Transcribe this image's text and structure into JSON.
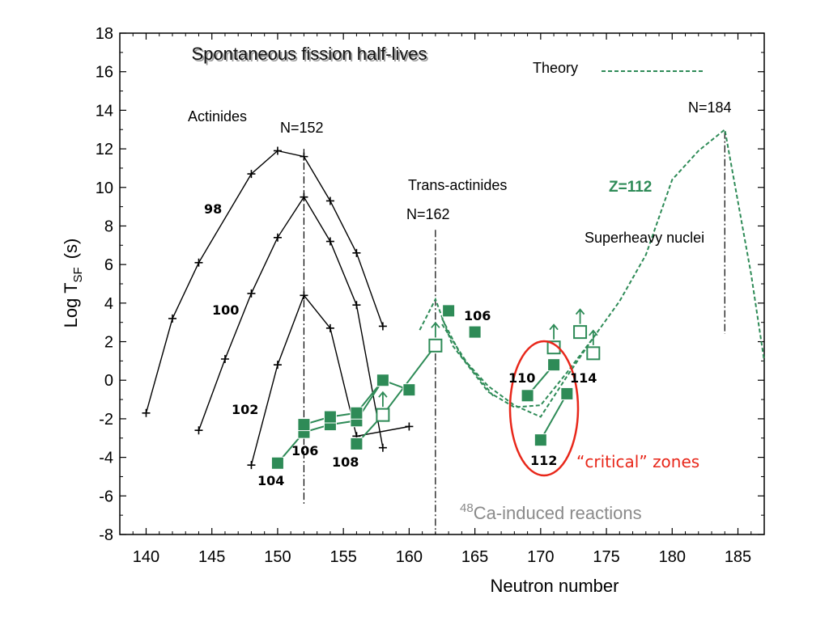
{
  "chart_data": {
    "type": "line",
    "title": "Spontaneous fission half-lives",
    "xlabel": "Neutron number",
    "ylabel_main": "Log T",
    "ylabel_sub": "SF",
    "ylabel_unit": "(s)",
    "xlim": [
      138,
      187
    ],
    "ylim": [
      -8,
      18
    ],
    "x_ticks": [
      140,
      145,
      150,
      155,
      160,
      165,
      170,
      175,
      180,
      185
    ],
    "y_ticks": [
      -8,
      -6,
      -4,
      -2,
      0,
      2,
      4,
      6,
      8,
      10,
      12,
      14,
      16,
      18
    ],
    "x_tick_labels": [
      "140",
      "145",
      "150",
      "155",
      "160",
      "165",
      "170",
      "175",
      "180",
      "185"
    ],
    "y_tick_labels": [
      "-8",
      "-6",
      "-4",
      "-2",
      "0",
      "2",
      "4",
      "6",
      "8",
      "10",
      "12",
      "14",
      "16",
      "18"
    ],
    "colors": {
      "actinide": "#000000",
      "sh": "#2e8b57",
      "ring": "#e8271a",
      "reactions": "#8a8a8a"
    },
    "actinide_series": [
      {
        "name": "98",
        "x": [
          140,
          142,
          144,
          148,
          150,
          152,
          154,
          156,
          158
        ],
        "y": [
          -1.7,
          3.2,
          6.1,
          10.7,
          11.9,
          11.6,
          9.3,
          6.6,
          2.8
        ]
      },
      {
        "name": "100",
        "x": [
          144,
          146,
          148,
          150,
          152,
          154,
          156,
          158
        ],
        "y": [
          -2.6,
          1.1,
          4.5,
          7.4,
          9.5,
          7.2,
          3.9,
          -3.5
        ]
      },
      {
        "name": "102",
        "x": [
          148,
          150,
          152,
          154,
          156
        ],
        "y": [
          -4.4,
          0.8,
          4.4,
          2.7,
          -2.9
        ]
      },
      {
        "name": "",
        "x": [
          156,
          160
        ],
        "y": [
          -2.9,
          -2.4
        ]
      }
    ],
    "sh_series": [
      {
        "name": "104",
        "x": [
          150,
          152,
          154,
          156,
          158,
          160
        ],
        "y": [
          -4.3,
          -2.7,
          -2.3,
          -2.1,
          0.0,
          -0.5
        ]
      },
      {
        "name": "106",
        "x": [
          152,
          154,
          156,
          158
        ],
        "y": [
          -2.3,
          -1.9,
          -1.7,
          0.0
        ]
      },
      {
        "name": "108",
        "x": [
          156,
          158,
          162
        ],
        "y": [
          -3.3,
          -1.8,
          1.8
        ]
      }
    ],
    "sh_filled_points": [
      {
        "x": 163,
        "y": 3.6
      },
      {
        "x": 165,
        "y": 2.5
      },
      {
        "x": 169,
        "y": -0.8
      },
      {
        "x": 171,
        "y": 0.8
      },
      {
        "x": 170,
        "y": -3.1
      },
      {
        "x": 172,
        "y": -0.7
      }
    ],
    "sh_open_points": [
      {
        "x": 162,
        "y": 1.8
      },
      {
        "x": 171,
        "y": 1.7
      },
      {
        "x": 173,
        "y": 2.5
      },
      {
        "x": 174,
        "y": 1.4
      },
      {
        "x": 158,
        "y": -1.8
      }
    ],
    "critical_lines": [
      {
        "x": [
          169,
          171
        ],
        "y": [
          -0.8,
          0.8
        ]
      },
      {
        "x": [
          170,
          172
        ],
        "y": [
          -3.1,
          -0.7
        ]
      }
    ],
    "theory_series": [
      {
        "name": "Theory",
        "x": [
          160.8,
          162,
          163.3,
          166,
          168,
          170,
          172,
          174,
          176,
          178,
          180,
          182,
          184,
          186,
          187
        ],
        "y": [
          2.6,
          4.2,
          1.8,
          -0.6,
          -1.4,
          -1.3,
          0.4,
          2.2,
          4.1,
          6.5,
          10.4,
          11.9,
          13.0,
          5.5,
          1.0
        ]
      },
      {
        "name": "",
        "x": [
          162.5,
          164,
          166,
          168,
          170,
          172,
          174
        ],
        "y": [
          3.2,
          1.2,
          -0.3,
          -1.3,
          -1.9,
          0.2,
          2.2
        ]
      },
      {
        "name": "",
        "x": [
          162.5,
          164.5,
          166.5
        ],
        "y": [
          2.9,
          0.8,
          -0.9
        ]
      }
    ],
    "dashdot_lines": [
      {
        "x": 152,
        "y_from": 12.0,
        "y_to": -6.4
      },
      {
        "x": 162,
        "y_from": 7.8,
        "y_to": -8.0
      },
      {
        "x": 184,
        "y_from": 12.9,
        "y_to": 2.4
      }
    ],
    "shell_labels": [
      "N=152",
      "N=162",
      "N=184"
    ],
    "region_labels": [
      "Actinides",
      "Trans-actinides",
      "Superheavy nuclei"
    ],
    "element_labels": [
      "98",
      "100",
      "102",
      "104",
      "106",
      "108",
      "106",
      "110",
      "112",
      "114"
    ],
    "z112_label": "Z=112",
    "legend_label": "Theory",
    "critical_label": "“critical” zones",
    "reaction_mass": "48",
    "reaction_label": "Ca-induced reactions"
  }
}
